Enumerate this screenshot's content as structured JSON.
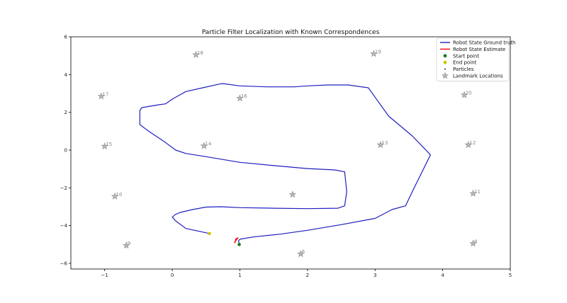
{
  "chart_data": {
    "type": "line",
    "title": "Particle Filter Localization with Known Correspondences",
    "xlabel": "",
    "ylabel": "",
    "xlim": [
      -1.5,
      5
    ],
    "ylim": [
      -6.3,
      6
    ],
    "xticks": [
      -1,
      0,
      1,
      2,
      3,
      4,
      5
    ],
    "yticks": [
      -6,
      -4,
      -2,
      0,
      2,
      4,
      6
    ],
    "grid": false,
    "legend_position": "top-right",
    "legend": [
      {
        "label": "Robot State Ground truth",
        "kind": "line",
        "color": "#1f1fbf"
      },
      {
        "label": "Robot State Estimate",
        "kind": "line",
        "color": "#ff0000"
      },
      {
        "label": "Start point",
        "kind": "dot",
        "color": "#1a7a1a"
      },
      {
        "label": "End point",
        "kind": "dot",
        "color": "#c8c800"
      },
      {
        "label": "Particles",
        "kind": "small-dot",
        "color": "#000000"
      },
      {
        "label": "Landmark Locations",
        "kind": "star",
        "color": "#aaaaaa"
      }
    ],
    "series": [
      {
        "color": "#1f1fbf",
        "points": [
          [
            0.99,
            -5.0
          ],
          [
            0.98,
            -4.8
          ],
          [
            1.0,
            -4.72
          ],
          [
            1.2,
            -4.6
          ],
          [
            1.6,
            -4.45
          ],
          [
            2.0,
            -4.25
          ],
          [
            2.5,
            -3.95
          ],
          [
            3.0,
            -3.62
          ],
          [
            3.25,
            -3.15
          ],
          [
            3.45,
            -2.95
          ],
          [
            3.55,
            -2.2
          ],
          [
            3.82,
            -0.25
          ],
          [
            3.55,
            0.75
          ],
          [
            3.2,
            1.8
          ],
          [
            3.0,
            2.8
          ],
          [
            2.9,
            3.3
          ],
          [
            2.6,
            3.45
          ],
          [
            2.3,
            3.45
          ],
          [
            2.0,
            3.4
          ],
          [
            1.8,
            3.35
          ],
          [
            1.4,
            3.35
          ],
          [
            1.0,
            3.4
          ],
          [
            0.75,
            3.52
          ],
          [
            0.7,
            3.5
          ],
          [
            0.45,
            3.3
          ],
          [
            0.2,
            3.1
          ],
          [
            0.0,
            2.7
          ],
          [
            -0.1,
            2.45
          ],
          [
            -0.2,
            2.4
          ],
          [
            -0.45,
            2.25
          ],
          [
            -0.48,
            2.1
          ],
          [
            -0.48,
            1.35
          ],
          [
            -0.35,
            1.0
          ],
          [
            -0.1,
            0.4
          ],
          [
            0.05,
            0.0
          ],
          [
            0.2,
            -0.18
          ],
          [
            0.5,
            -0.35
          ],
          [
            1.0,
            -0.65
          ],
          [
            1.5,
            -0.82
          ],
          [
            2.0,
            -0.98
          ],
          [
            2.4,
            -1.05
          ],
          [
            2.55,
            -1.15
          ],
          [
            2.58,
            -2.2
          ],
          [
            2.55,
            -2.95
          ],
          [
            2.45,
            -3.08
          ],
          [
            2.0,
            -3.1
          ],
          [
            1.5,
            -3.08
          ],
          [
            1.0,
            -3.05
          ],
          [
            0.72,
            -3.0
          ],
          [
            0.5,
            -3.02
          ],
          [
            0.3,
            -3.15
          ],
          [
            0.12,
            -3.3
          ],
          [
            0.05,
            -3.4
          ],
          [
            0.0,
            -3.55
          ],
          [
            0.05,
            -3.75
          ],
          [
            0.2,
            -4.15
          ],
          [
            0.5,
            -4.38
          ],
          [
            0.55,
            -4.42
          ]
        ]
      },
      {
        "color": "#ff0000",
        "points": [
          [
            0.92,
            -4.92
          ],
          [
            0.94,
            -4.78
          ],
          [
            0.97,
            -4.65
          ],
          [
            0.93,
            -4.75
          ]
        ]
      }
    ],
    "start_point": [
      0.99,
      -5.0
    ],
    "end_point": [
      0.55,
      -4.42
    ],
    "landmarks": [
      {
        "id": "6",
        "x": 1.9,
        "y": -5.5
      },
      {
        "id": "8",
        "x": 4.45,
        "y": -4.95
      },
      {
        "id": "9",
        "x": -0.68,
        "y": -5.05
      },
      {
        "id": "10",
        "x": -0.85,
        "y": -2.45
      },
      {
        "id": "11",
        "x": 4.45,
        "y": -2.3
      },
      {
        "id": "12",
        "x": 4.38,
        "y": 0.28
      },
      {
        "id": "13",
        "x": 3.08,
        "y": 0.28
      },
      {
        "id": "14",
        "x": 0.47,
        "y": 0.22
      },
      {
        "id": "15",
        "x": -1.0,
        "y": 0.2
      },
      {
        "id": "16",
        "x": 1.0,
        "y": 2.75
      },
      {
        "id": "17",
        "x": -1.05,
        "y": 2.85
      },
      {
        "id": "18",
        "x": 0.35,
        "y": 5.05
      },
      {
        "id": "19",
        "x": 2.98,
        "y": 5.1
      },
      {
        "id": "20",
        "x": 4.32,
        "y": 2.92
      },
      {
        "id": "",
        "x": 1.78,
        "y": -2.35
      }
    ]
  }
}
